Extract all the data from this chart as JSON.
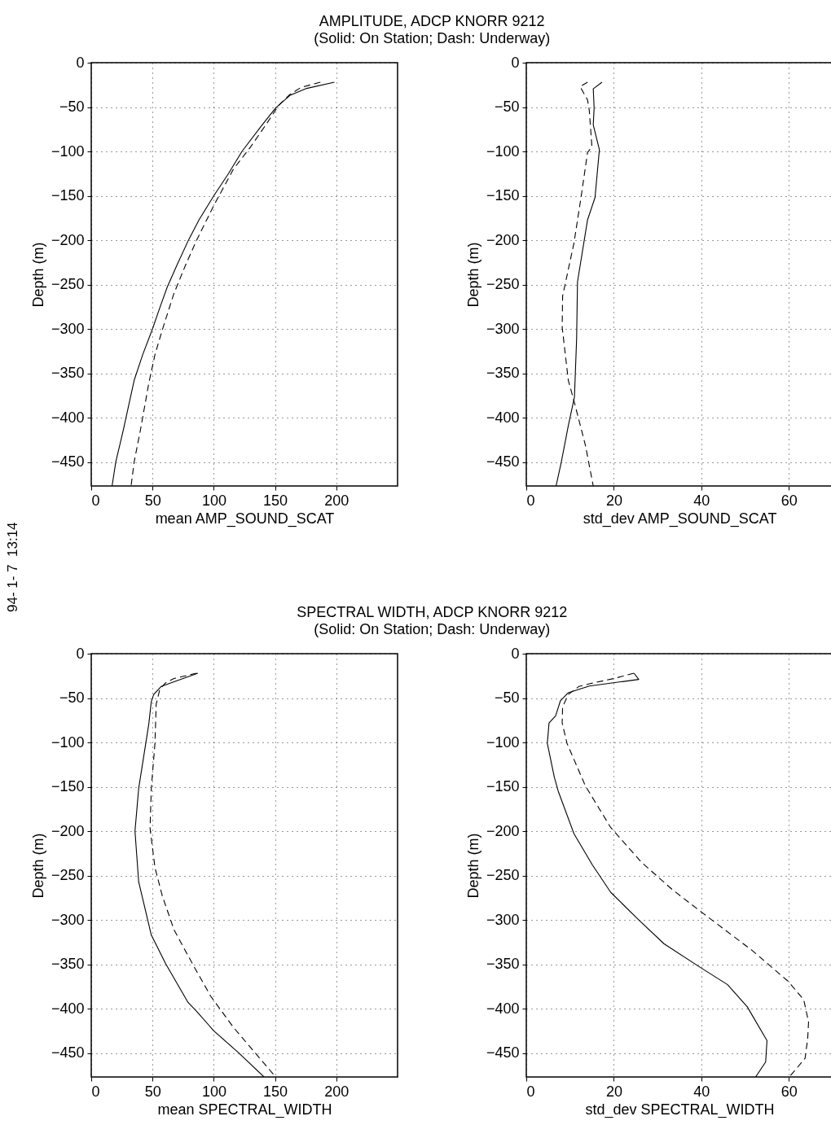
{
  "chart_data": [
    {
      "type": "line",
      "title": "AMPLITUDE, ADCP KNORR 9212",
      "subtitle": "(Solid: On Station; Dash: Underway)",
      "xlabel": "mean AMP_SOUND_SCAT",
      "ylabel": "Depth (m)",
      "xlim": [
        0,
        250
      ],
      "xticks": [
        0,
        50,
        100,
        150,
        200
      ],
      "ylim": [
        -477,
        0
      ],
      "yticks": [
        0,
        -50,
        -100,
        -150,
        -200,
        -250,
        -300,
        -350,
        -400,
        -450
      ],
      "grid": true,
      "annotations": [
        "94- 1- 7  13:14"
      ],
      "series": [
        {
          "color": "#000000",
          "line_style": "solid",
          "x": [
            198.4,
            175.8,
            162,
            150.5,
            139,
            123,
            112,
            100,
            88,
            79,
            70,
            62,
            56,
            50,
            42,
            35,
            26,
            20,
            17
          ],
          "values": [
            -22,
            -29,
            -37,
            -51,
            -71,
            -100,
            -125,
            -150,
            -177,
            -201,
            -228,
            -253,
            -276,
            -300,
            -329,
            -358,
            -415,
            -450,
            -477
          ]
        },
        {
          "color": "#000000",
          "line_style": "dashed",
          "x": [
            187,
            171,
            162,
            153,
            143.5,
            130,
            116,
            100,
            86,
            77,
            67.5,
            58,
            52,
            47,
            40,
            35,
            32.5
          ],
          "values": [
            -22,
            -28,
            -36,
            -48,
            -68,
            -95,
            -120,
            -161,
            -200,
            -228,
            -260,
            -301,
            -329,
            -361,
            -415,
            -450,
            -477
          ]
        }
      ]
    },
    {
      "type": "line",
      "xlabel": "std_dev AMP_SOUND_SCAT",
      "ylabel": "Depth (m)",
      "xlim": [
        0,
        70
      ],
      "xticks": [
        0,
        20,
        40,
        60
      ],
      "ylim": [
        -477,
        0
      ],
      "yticks": [
        0,
        -50,
        -100,
        -150,
        -200,
        -250,
        -300,
        -350,
        -400,
        -450
      ],
      "grid": true,
      "series": [
        {
          "color": "#000000",
          "line_style": "solid",
          "x": [
            17.3,
            15.3,
            15.5,
            15.3,
            16.7,
            15.7,
            14,
            11.7,
            11.5,
            11,
            9.6,
            8,
            6.8
          ],
          "values": [
            -22,
            -29.5,
            -51,
            -70,
            -98,
            -152,
            -177,
            -247,
            -311,
            -377,
            -409,
            -450,
            -477
          ]
        },
        {
          "color": "#000000",
          "line_style": "dashed",
          "x": [
            14,
            12.3,
            14,
            14.4,
            15,
            14,
            12.5,
            10.9,
            8.3,
            8.2,
            9.6,
            11,
            13.5,
            15.3
          ],
          "values": [
            -22,
            -27,
            -42,
            -54,
            -95,
            -101,
            -152,
            -203,
            -263,
            -298,
            -358,
            -383,
            -431,
            -477
          ]
        }
      ]
    },
    {
      "type": "line",
      "title": "SPECTRAL WIDTH, ADCP KNORR 9212",
      "subtitle": "(Solid: On Station; Dash: Underway)",
      "xlabel": "mean SPECTRAL_WIDTH",
      "ylabel": "Depth (m)",
      "xlim": [
        0,
        250
      ],
      "xticks": [
        0,
        50,
        100,
        150,
        200
      ],
      "ylim": [
        -477,
        0
      ],
      "yticks": [
        0,
        -50,
        -100,
        -150,
        -200,
        -250,
        -300,
        -350,
        -400,
        -450
      ],
      "grid": true,
      "series": [
        {
          "color": "#000000",
          "line_style": "solid",
          "x": [
            87,
            57,
            51,
            49,
            47,
            38.7,
            35.7,
            38.7,
            49,
            60.6,
            79,
            86,
            100,
            120.5,
            141
          ],
          "values": [
            -22,
            -37,
            -46,
            -54,
            -79,
            -152,
            -200,
            -257,
            -317,
            -349,
            -393,
            -403,
            -425,
            -450,
            -477
          ]
        },
        {
          "color": "#000000",
          "line_style": "dashed",
          "x": [
            86,
            67.5,
            60.6,
            56,
            53,
            52,
            49,
            48,
            52,
            58,
            67.5,
            83.6,
            97.5,
            116,
            150.5
          ],
          "values": [
            -22,
            -28,
            -33,
            -40,
            -57,
            -101,
            -152,
            -197,
            -241,
            -273,
            -311,
            -352,
            -386,
            -421,
            -477
          ]
        }
      ]
    },
    {
      "type": "line",
      "xlabel": "std_dev SPECTRAL_WIDTH",
      "ylabel": "Depth (m)",
      "xlim": [
        0,
        70
      ],
      "xticks": [
        0,
        20,
        40,
        60
      ],
      "ylim": [
        -477,
        0
      ],
      "yticks": [
        0,
        -50,
        -100,
        -150,
        -200,
        -250,
        -300,
        -350,
        -400,
        -450
      ],
      "grid": true,
      "series": [
        {
          "color": "#000000",
          "line_style": "solid",
          "x": [
            24.6,
            25.7,
            14.4,
            9.6,
            7.8,
            6.7,
            5.2,
            4.8,
            6.4,
            7.3,
            10.9,
            15.1,
            19.3,
            25.7,
            31.5,
            39.9,
            46,
            50.5,
            55,
            54.7,
            52.4
          ],
          "values": [
            -22,
            -29,
            -36.5,
            -44,
            -53,
            -70,
            -78,
            -101,
            -139,
            -155,
            -203,
            -238,
            -269,
            -300,
            -327,
            -354,
            -373,
            -398,
            -436,
            -460,
            -477
          ]
        },
        {
          "color": "#000000",
          "line_style": "dashed",
          "x": [
            24.6,
            20,
            14.4,
            12,
            9.6,
            8.3,
            8.2,
            9.3,
            13.5,
            19.3,
            26.3,
            33.4,
            40.5,
            51.5,
            59.8,
            63.4,
            64.5,
            64.3,
            63.7,
            60.1
          ],
          "values": [
            -22,
            -28,
            -34,
            -37,
            -46,
            -60,
            -78,
            -101,
            -149,
            -196,
            -235,
            -266,
            -293,
            -334,
            -369,
            -390,
            -415,
            -434,
            -456,
            -477
          ]
        }
      ]
    }
  ]
}
